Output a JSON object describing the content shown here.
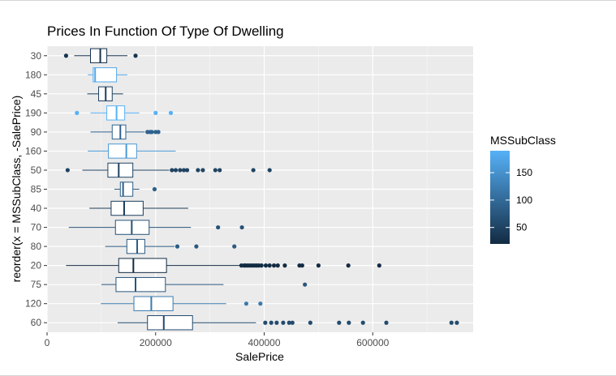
{
  "chart_data": {
    "type": "boxplot",
    "title": "Prices In Function Of Type Of Dwelling",
    "xlabel": "SalePrice",
    "ylabel": "reorder(x = MSSubClass, -SalePrice)",
    "xlim": [
      0,
      785000
    ],
    "x_ticks": [
      0,
      200000,
      400000,
      600000
    ],
    "x_tick_labels": [
      "0",
      "200000",
      "400000",
      "600000"
    ],
    "x_minor_ticks": [
      100000,
      300000,
      500000,
      700000
    ],
    "grid": true,
    "legend": {
      "title": "MSSubClass",
      "position": "right",
      "range": [
        20,
        190
      ],
      "breaks": [
        50,
        100,
        150
      ],
      "labels": [
        "50",
        "100",
        "150"
      ],
      "color_low": "#132b43",
      "color_high": "#56b1f7"
    },
    "categories": [
      "30",
      "180",
      "45",
      "190",
      "90",
      "160",
      "50",
      "85",
      "40",
      "70",
      "80",
      "20",
      "75",
      "120",
      "60"
    ],
    "boxes": [
      {
        "cls": 30,
        "min": 50000,
        "q1": 80000,
        "median": 98000,
        "q3": 110000,
        "max": 148000,
        "outliers": [
          35000,
          163000
        ]
      },
      {
        "cls": 180,
        "min": 75000,
        "q1": 85000,
        "median": 88500,
        "q3": 128000,
        "max": 148000,
        "outliers": []
      },
      {
        "cls": 45,
        "min": 74000,
        "q1": 95000,
        "median": 108000,
        "q3": 120000,
        "max": 140000,
        "outliers": []
      },
      {
        "cls": 190,
        "min": 80000,
        "q1": 110000,
        "median": 128000,
        "q3": 143000,
        "max": 170000,
        "outliers": [
          55000,
          200000,
          228000
        ]
      },
      {
        "cls": 90,
        "min": 80000,
        "q1": 120000,
        "median": 135000,
        "q3": 145000,
        "max": 180000,
        "outliers": [
          185000,
          190000,
          193000,
          200000,
          205000
        ]
      },
      {
        "cls": 160,
        "min": 75000,
        "q1": 113000,
        "median": 146000,
        "q3": 165000,
        "max": 237000,
        "outliers": []
      },
      {
        "cls": 50,
        "min": 65000,
        "q1": 112000,
        "median": 132000,
        "q3": 158000,
        "max": 225000,
        "outliers": [
          37900,
          230000,
          237000,
          245000,
          252000,
          258000,
          278000,
          287000,
          310000,
          318000,
          380000,
          410000
        ]
      },
      {
        "cls": 85,
        "min": 124000,
        "q1": 135000,
        "median": 140000,
        "q3": 158000,
        "max": 170000,
        "outliers": [
          198000
        ]
      },
      {
        "cls": 40,
        "min": 78000,
        "q1": 118000,
        "median": 142000,
        "q3": 177000,
        "max": 260000,
        "outliers": []
      },
      {
        "cls": 70,
        "min": 40000,
        "q1": 126000,
        "median": 156000,
        "q3": 188000,
        "max": 265000,
        "outliers": [
          315000,
          359000
        ]
      },
      {
        "cls": 80,
        "min": 107000,
        "q1": 147000,
        "median": 166000,
        "q3": 180000,
        "max": 235000,
        "outliers": [
          240000,
          275000,
          345000
        ]
      },
      {
        "cls": 20,
        "min": 35000,
        "q1": 132000,
        "median": 159000,
        "q3": 220000,
        "max": 355000,
        "outliers": [
          358000,
          363000,
          366000,
          370000,
          374000,
          378000,
          382000,
          386000,
          390000,
          395000,
          403000,
          410000,
          418000,
          425000,
          438000,
          465000,
          470000,
          500000,
          555000,
          612000
        ]
      },
      {
        "cls": 75,
        "min": 100000,
        "q1": 127000,
        "median": 163000,
        "q3": 218000,
        "max": 325000,
        "outliers": [
          475000
        ]
      },
      {
        "cls": 120,
        "min": 99000,
        "q1": 160000,
        "median": 192000,
        "q3": 232000,
        "max": 330000,
        "outliers": [
          367000,
          393000
        ]
      },
      {
        "cls": 60,
        "min": 130000,
        "q1": 185000,
        "median": 215000,
        "q3": 268000,
        "max": 385000,
        "outliers": [
          402000,
          413000,
          423000,
          435000,
          446000,
          452000,
          485000,
          538000,
          556000,
          582000,
          625000,
          745000,
          755000
        ]
      }
    ]
  }
}
